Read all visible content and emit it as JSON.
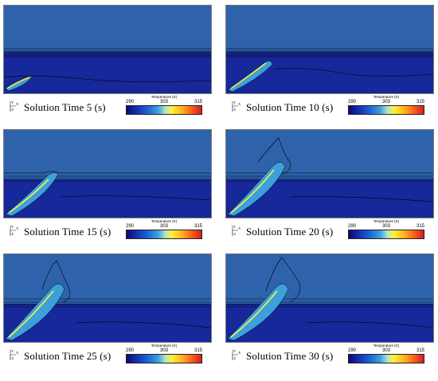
{
  "legend": {
    "title": "Temperature (K)",
    "min": "290",
    "mid": "303",
    "max": "315"
  },
  "axis": {
    "y": "Y",
    "x": "X",
    "z": "Z"
  },
  "colors": {
    "upper_layer": "#2e63ac",
    "lower_layer": "#17289a",
    "hot": "#fff03c",
    "warm": "#3ca0dc",
    "contour": "#000000"
  },
  "panels": [
    {
      "caption": "Solution Time 5 (s)",
      "plume_progress": 0.05
    },
    {
      "caption": "Solution Time 10 (s)",
      "plume_progress": 0.25
    },
    {
      "caption": "Solution Time 15 (s)",
      "plume_progress": 0.5
    },
    {
      "caption": "Solution Time 20 (s)",
      "plume_progress": 0.68
    },
    {
      "caption": "Solution Time 25 (s)",
      "plume_progress": 0.85
    },
    {
      "caption": "Solution Time 30 (s)",
      "plume_progress": 1.0
    }
  ]
}
